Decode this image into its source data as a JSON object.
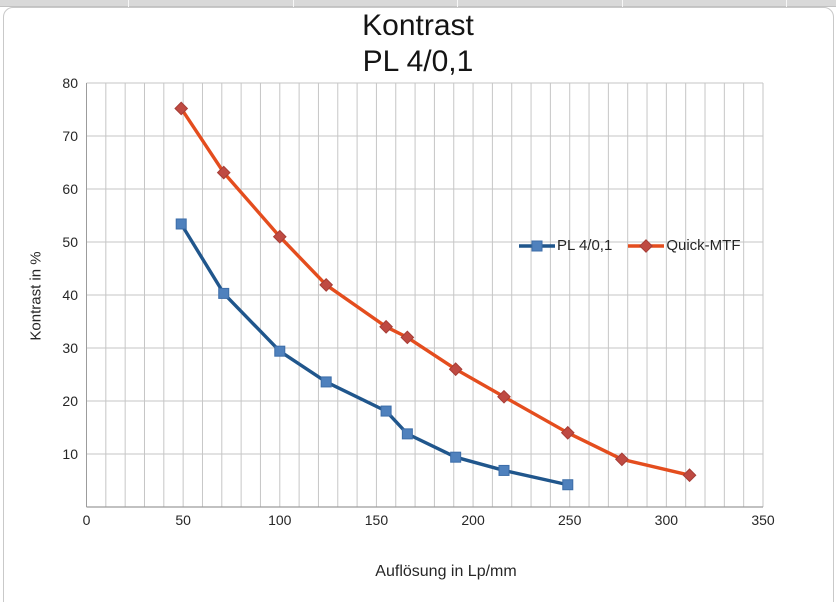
{
  "chart_data": {
    "type": "line",
    "title": "Kontrast",
    "subtitle": "PL 4/0,1",
    "xlabel": "Auflösung in Lp/mm",
    "ylabel": "Kontrast in %",
    "xlim": [
      0,
      350
    ],
    "ylim": [
      0,
      80
    ],
    "x_ticks": [
      0,
      50,
      100,
      150,
      200,
      250,
      300,
      350
    ],
    "y_ticks": [
      10,
      20,
      30,
      40,
      50,
      60,
      70,
      80
    ],
    "x_grid_step": 10,
    "y_grid_step": 10,
    "grid": true,
    "legend_position": "inside-right",
    "series": [
      {
        "name": "PL 4/0,1",
        "marker": "square",
        "line_color": "#20568c",
        "marker_fill": "#4f81bd",
        "marker_edge": "#3c6da8",
        "x": [
          49,
          71,
          100,
          124,
          155,
          166,
          191,
          216,
          249
        ],
        "y": [
          53.4,
          40.3,
          29.4,
          23.6,
          18.1,
          13.8,
          9.4,
          6.9,
          4.2
        ]
      },
      {
        "name": "Quick-MTF",
        "marker": "diamond",
        "line_color": "#e44d1e",
        "marker_fill": "#bf4a42",
        "marker_edge": "#a63d36",
        "x": [
          49,
          71,
          100,
          124,
          155,
          166,
          191,
          216,
          249,
          277,
          312
        ],
        "y": [
          75.2,
          63.1,
          51.0,
          41.9,
          34.0,
          32.0,
          26.0,
          20.8,
          14.0,
          9.0,
          6.0
        ]
      }
    ]
  },
  "colors": {
    "gridline": "#c6c6c6",
    "axis": "#9c9c9c",
    "strip_bg": "#d9d9d9",
    "frame_border": "#c9c9c9"
  }
}
